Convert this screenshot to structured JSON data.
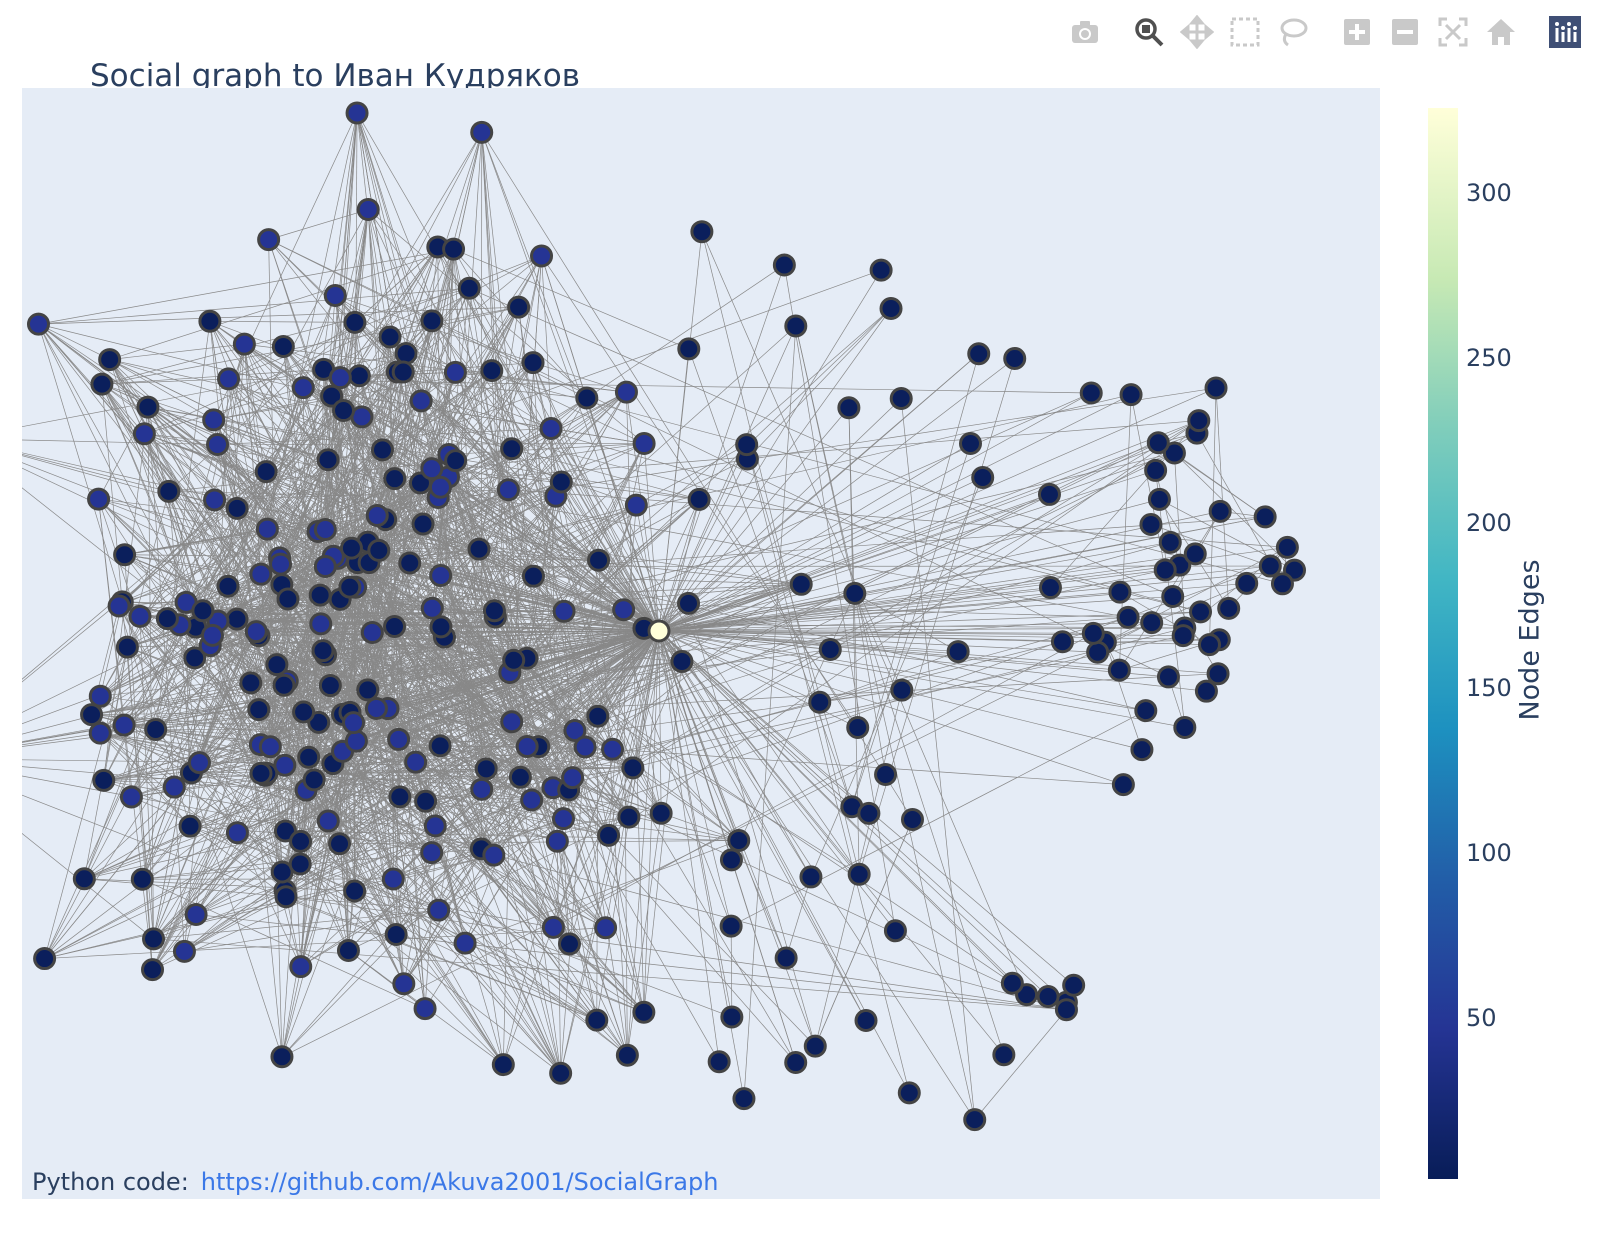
{
  "title": "Social graph to Иван Кудряков",
  "footer": {
    "label": "Python code:",
    "link_text": "https://github.com/Akuva2001/SocialGraph"
  },
  "modebar": [
    {
      "name": "camera-icon"
    },
    {
      "name": "zoom-icon"
    },
    {
      "name": "pan-icon"
    },
    {
      "name": "box-select-icon"
    },
    {
      "name": "lasso-select-icon"
    },
    {
      "name": "zoom-in-icon"
    },
    {
      "name": "zoom-out-icon"
    },
    {
      "name": "autoscale-icon"
    },
    {
      "name": "reset-axes-icon"
    },
    {
      "name": "plotly-logo-icon"
    }
  ],
  "colorbar": {
    "title": "Node Edges",
    "ticks": [
      "50",
      "100",
      "150",
      "200",
      "250",
      "300"
    ],
    "range": [
      1,
      327
    ],
    "colorscale": "YlGnBu"
  },
  "colors": {
    "plot_background": "#e5ecf6",
    "edge": "#888888",
    "node_border": "#444444",
    "link": "#3b78e7",
    "text": "#2a3f5f"
  },
  "chart_data": {
    "type": "network",
    "title": "Social graph to Иван Кудряков",
    "colorbar_title": "Node Edges",
    "colorbar_ticks": [
      50,
      100,
      150,
      200,
      250,
      300
    ],
    "colorbar_range": [
      1,
      327
    ],
    "center_node_edges": 327,
    "typical_node_edges_range": [
      1,
      80
    ]
  }
}
